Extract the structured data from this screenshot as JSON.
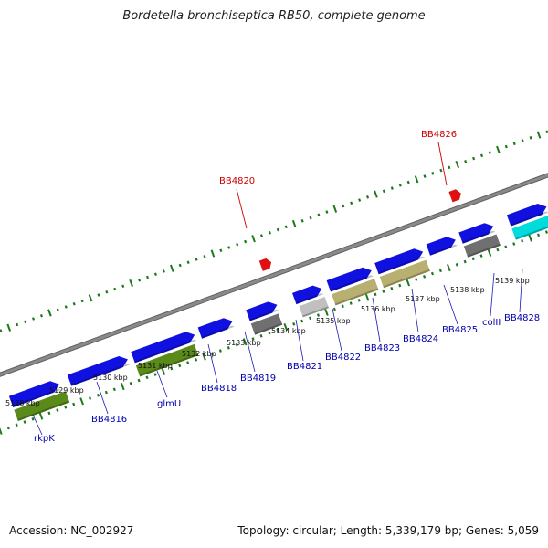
{
  "title": "Bordetella bronchiseptica RB50, complete genome",
  "accession": "Accession: NC_002927",
  "summary": "Topology: circular; Length: 5,339,179 bp; Genes: 5,059",
  "colors": {
    "backbone": "#8a8a8a",
    "ticks": "#1a7a1a",
    "gene_blue": "#1010e0",
    "gene_green": "#5a8a1a",
    "gene_gray": "#707070",
    "gene_lightgray": "#c0c0c0",
    "gene_khaki": "#b8b070",
    "gene_cyan": "#00dcdc",
    "highlight": "#e01010",
    "gene_label": "#0000aa",
    "highlight_label": "#cc0000"
  },
  "kbp_ticks": [
    "5128 kbp",
    "5129 kbp",
    "5130 kbp",
    "5131 kbp",
    "5132 kbp",
    "5133 kbp",
    "5134 kbp",
    "5135 kbp",
    "5136 kbp",
    "5137 kbp",
    "5138 kbp",
    "5139 kbp"
  ],
  "gene_labels": [
    "rkpK",
    "BB4816",
    "glmU",
    "BB4818",
    "BB4819",
    "BB4821",
    "BB4822",
    "BB4823",
    "BB4824",
    "BB4825",
    "colII",
    "BB4828"
  ],
  "highlight_labels": [
    "BB4820",
    "BB4826"
  ]
}
